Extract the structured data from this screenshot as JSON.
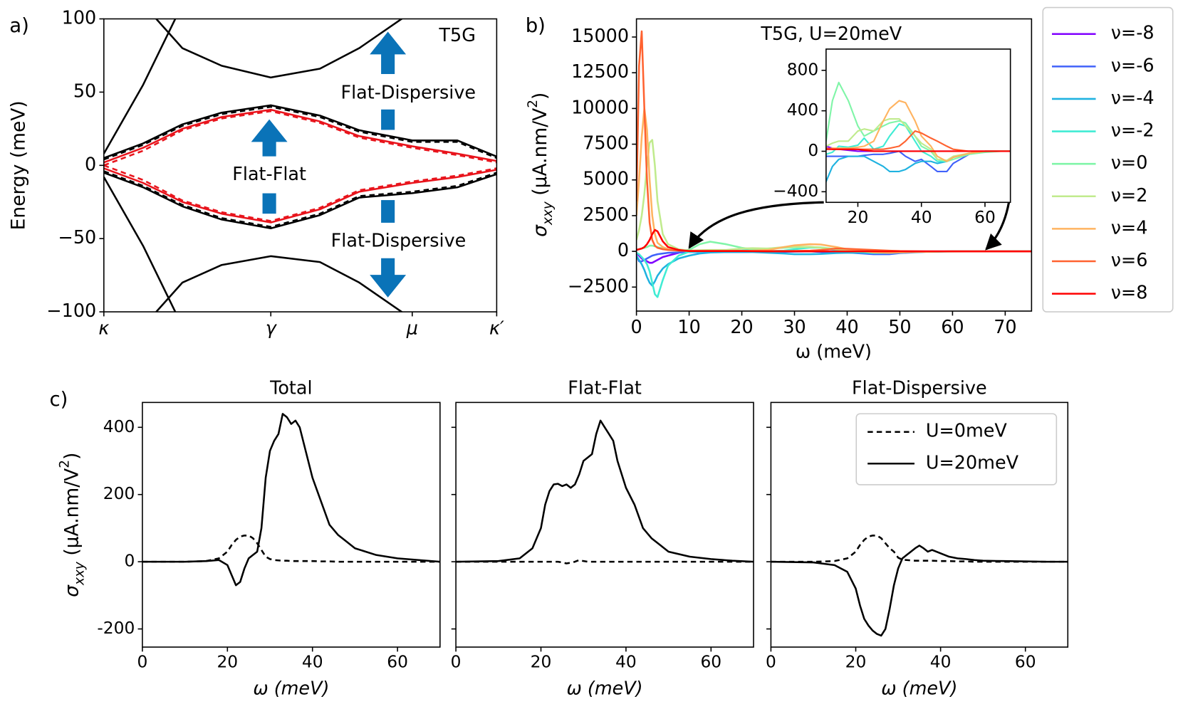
{
  "chart_data": [
    {
      "type": "line",
      "panel_label": "a)",
      "ylabel": "Energy (meV)",
      "x": [
        0,
        0.1,
        0.2,
        0.3,
        0.425,
        0.55,
        0.65,
        0.785,
        0.9,
        1
      ],
      "xlim": [
        0,
        1
      ],
      "xticks": [
        {
          "value": 0,
          "label": "κ"
        },
        {
          "value": 0.425,
          "label": "γ"
        },
        {
          "value": 0.785,
          "label": "μ"
        },
        {
          "value": 1,
          "label": "κ′"
        }
      ],
      "ylim": [
        -100,
        100
      ],
      "yticks": [
        {
          "value": -100,
          "label": "−100"
        },
        {
          "value": -50,
          "label": "−50"
        },
        0,
        50,
        100
      ],
      "annotations": [
        "T5G",
        "Flat-Dispersive",
        "Flat-Flat",
        "Flat-Dispersive"
      ],
      "series": [
        {
          "color": "#e8141c",
          "dash": false,
          "values": [
            2,
            12,
            25,
            33,
            38,
            30,
            20,
            13,
            8,
            3
          ]
        },
        {
          "color": "#e8141c",
          "dash": true,
          "values": [
            0,
            10,
            24,
            32,
            37,
            29,
            19,
            12,
            7,
            2
          ]
        },
        {
          "color": "#e8141c",
          "dash": false,
          "values": [
            -2,
            -12,
            -25,
            -33,
            -39,
            -30,
            -18,
            -12,
            -8,
            -3
          ]
        },
        {
          "color": "#e8141c",
          "dash": true,
          "values": [
            0,
            -10,
            -24,
            -32,
            -38,
            -29,
            -17,
            -11,
            -7,
            -2
          ]
        },
        {
          "color": "#000000",
          "dash": false,
          "values": [
            5,
            15,
            28,
            36,
            41,
            34,
            24,
            17,
            17,
            6
          ]
        },
        {
          "color": "#000000",
          "dash": true,
          "values": [
            4,
            14,
            27,
            35,
            40,
            33,
            23,
            16,
            16,
            5
          ]
        },
        {
          "color": "#000000",
          "dash": false,
          "values": [
            -5,
            -15,
            -28,
            -37,
            -43,
            -34,
            -22,
            -19,
            -15,
            -6
          ]
        },
        {
          "color": "#000000",
          "dash": true,
          "values": [
            -4,
            -14,
            -27,
            -36,
            -42,
            -33,
            -21,
            -18,
            -14,
            -5
          ]
        },
        {
          "color": "#000000",
          "dash": false,
          "values": [
            8,
            55,
            110,
            null,
            null,
            null,
            null,
            null,
            null,
            null
          ]
        },
        {
          "color": "#000000",
          "dash": false,
          "values": [
            null,
            110,
            80,
            68,
            60,
            66,
            80,
            105,
            null,
            null
          ]
        },
        {
          "color": "#000000",
          "dash": false,
          "values": [
            -8,
            -55,
            -110,
            null,
            null,
            null,
            null,
            null,
            null,
            null
          ]
        },
        {
          "color": "#000000",
          "dash": false,
          "values": [
            null,
            -110,
            -80,
            -68,
            -62,
            -66,
            -80,
            -105,
            null,
            null
          ]
        }
      ]
    },
    {
      "type": "line",
      "panel_label": "b)",
      "annotation": "T5G, U=20meV",
      "xlabel": "ω (meV)",
      "ylabel": [
        {
          "text": "σ"
        },
        {
          "text": "xxy",
          "script": "sub"
        },
        {
          "text": " (μA.nm/V"
        },
        {
          "text": "2",
          "script": "sup"
        },
        {
          "text": ")"
        }
      ],
      "legend": "outside right",
      "x": [
        0,
        0.5,
        1,
        1.5,
        2,
        2.5,
        3,
        3.5,
        4,
        5,
        6,
        8,
        10,
        12,
        14,
        17,
        20,
        22,
        25,
        28,
        30,
        33,
        35,
        38,
        40,
        43,
        45,
        48,
        50,
        55,
        60,
        65,
        70,
        75
      ],
      "xlim": [
        0,
        75
      ],
      "xticks": [
        0,
        10,
        20,
        30,
        40,
        50,
        60,
        70
      ],
      "ylim": [
        -4180,
        16270
      ],
      "yticks": [
        {
          "value": -2500,
          "label": "−2500"
        },
        0,
        2500,
        5000,
        7500,
        10000,
        12500,
        15000
      ],
      "inset": {
        "xlim": [
          10,
          68
        ],
        "xticks": [
          20,
          40,
          60
        ],
        "ylim": [
          -505,
          1010
        ],
        "yticks": [
          {
            "value": -400,
            "label": "−400"
          },
          0,
          400,
          800
        ]
      },
      "series": [
        {
          "name": "ν=-8",
          "color": "#8000ff",
          "values": [
            -100,
            -300,
            -500,
            -600,
            -700,
            -800,
            -800,
            -700,
            -600,
            -400,
            -300,
            -100,
            50,
            30,
            20,
            10,
            0,
            0,
            0,
            0,
            0,
            0,
            0,
            0,
            0,
            0,
            0,
            0,
            0,
            0,
            0,
            0,
            0,
            0
          ]
        },
        {
          "name": "ν=-6",
          "color": "#4062fa",
          "values": [
            -300,
            -700,
            -700,
            -600,
            -500,
            -400,
            -300,
            -250,
            -200,
            -150,
            -100,
            -80,
            -50,
            -50,
            -50,
            -50,
            -50,
            -40,
            -30,
            -30,
            -20,
            0,
            -50,
            -100,
            -80,
            -150,
            -200,
            -200,
            -120,
            -30,
            0,
            0,
            0,
            0
          ]
        },
        {
          "name": "ν=-4",
          "color": "#1fb2e0",
          "values": [
            -300,
            -600,
            -900,
            -1300,
            -1800,
            -2200,
            -2400,
            -2100,
            -1700,
            -1200,
            -900,
            -500,
            -300,
            -150,
            -80,
            -50,
            -50,
            -50,
            -100,
            -150,
            -200,
            -200,
            -180,
            -120,
            -100,
            -100,
            -120,
            -100,
            -60,
            -20,
            0,
            0,
            0,
            0
          ]
        },
        {
          "name": "ν=-2",
          "color": "#40ecd4",
          "values": [
            -100,
            -200,
            -400,
            -600,
            -900,
            -1400,
            -2200,
            -3000,
            -3200,
            -2000,
            -1000,
            -300,
            -30,
            -10,
            50,
            40,
            60,
            130,
            20,
            50,
            150,
            270,
            250,
            100,
            0,
            -50,
            -100,
            -100,
            -60,
            -20,
            0,
            0,
            0,
            0
          ]
        },
        {
          "name": "ν=0",
          "color": "#80f5a8",
          "values": [
            100,
            150,
            200,
            250,
            300,
            400,
            400,
            350,
            300,
            200,
            150,
            80,
            100,
            500,
            680,
            500,
            250,
            150,
            200,
            250,
            280,
            300,
            280,
            150,
            50,
            0,
            -80,
            -100,
            -80,
            -30,
            -10,
            0,
            0,
            0
          ]
        },
        {
          "name": "ν=2",
          "color": "#c0eb8d",
          "values": [
            800,
            1500,
            2500,
            4000,
            6000,
            7600,
            7800,
            6000,
            3500,
            1200,
            500,
            150,
            50,
            80,
            100,
            100,
            200,
            220,
            200,
            300,
            320,
            320,
            250,
            150,
            80,
            20,
            -80,
            -90,
            -50,
            -20,
            0,
            0,
            0,
            0
          ]
        },
        {
          "name": "ν=4",
          "color": "#ffb360",
          "values": [
            2500,
            5000,
            8000,
            10000,
            8500,
            5000,
            2500,
            1200,
            600,
            300,
            150,
            60,
            20,
            30,
            30,
            30,
            40,
            50,
            100,
            300,
            420,
            500,
            480,
            300,
            150,
            50,
            -50,
            -100,
            -60,
            -20,
            0,
            0,
            0,
            0
          ]
        },
        {
          "name": "ν=6",
          "color": "#ff6230",
          "values": [
            3500,
            13000,
            15400,
            10000,
            5000,
            2000,
            800,
            400,
            250,
            150,
            100,
            50,
            30,
            20,
            20,
            20,
            20,
            20,
            20,
            20,
            30,
            50,
            100,
            200,
            180,
            130,
            100,
            50,
            20,
            0,
            0,
            0,
            0,
            0
          ]
        },
        {
          "name": "ν=8",
          "color": "#ff0000",
          "values": [
            100,
            150,
            200,
            300,
            500,
            800,
            1200,
            1500,
            1400,
            700,
            300,
            100,
            20,
            20,
            20,
            20,
            20,
            10,
            0,
            0,
            0,
            0,
            0,
            0,
            0,
            0,
            0,
            0,
            0,
            0,
            0,
            0,
            0,
            0
          ]
        }
      ]
    },
    {
      "type": "line",
      "panel_label": "c)",
      "title": "Total",
      "xlabel": "ω (meV)",
      "ylabel": [
        {
          "text": "σ"
        },
        {
          "text": "xxy",
          "script": "sub"
        },
        {
          "text": " (μA.nm/V"
        },
        {
          "text": "2",
          "script": "sup"
        },
        {
          "text": ")"
        }
      ],
      "x": [
        0,
        10,
        15,
        18,
        20,
        21,
        22,
        23,
        24,
        25,
        26,
        27,
        28,
        29,
        30,
        31,
        32,
        33,
        34,
        35,
        36,
        37,
        38,
        40,
        42,
        44,
        46,
        48,
        50,
        55,
        60,
        65,
        70
      ],
      "xlim": [
        0,
        70
      ],
      "xticks": [
        0,
        20,
        40,
        60
      ],
      "ylim": [
        -254,
        474
      ],
      "yticks": [
        -200,
        0,
        200,
        400
      ],
      "show_yticklabels": true,
      "series": [
        {
          "color": "#000000",
          "dash": true,
          "values": [
            0,
            0,
            2,
            10,
            30,
            50,
            65,
            75,
            78,
            78,
            70,
            55,
            35,
            15,
            8,
            5,
            4,
            3,
            3,
            2,
            2,
            2,
            2,
            2,
            1,
            1,
            0,
            0,
            0,
            0,
            0,
            0,
            0
          ]
        },
        {
          "color": "#000000",
          "dash": false,
          "values": [
            0,
            0,
            2,
            5,
            -10,
            -40,
            -70,
            -60,
            -20,
            10,
            20,
            30,
            100,
            250,
            330,
            360,
            380,
            440,
            430,
            410,
            420,
            400,
            350,
            250,
            180,
            110,
            80,
            60,
            40,
            20,
            10,
            5,
            0
          ]
        }
      ]
    },
    {
      "type": "line",
      "title": "Flat-Flat",
      "xlabel": "ω (meV)",
      "x": [
        0,
        10,
        15,
        18,
        20,
        21,
        22,
        23,
        24,
        25,
        26,
        27,
        28,
        29,
        30,
        31,
        32,
        33,
        34,
        35,
        36,
        37,
        38,
        40,
        42,
        44,
        46,
        48,
        50,
        55,
        60,
        65,
        70
      ],
      "xlim": [
        0,
        70
      ],
      "xticks": [
        0,
        20,
        40,
        60
      ],
      "ylim": [
        -254,
        474
      ],
      "yticks": [
        -200,
        0,
        200,
        400
      ],
      "show_yticklabels": false,
      "series": [
        {
          "color": "#000000",
          "dash": true,
          "values": [
            0,
            0,
            0,
            0,
            0,
            0,
            0,
            0,
            0,
            -2,
            -5,
            -3,
            0,
            5,
            2,
            0,
            0,
            0,
            0,
            0,
            0,
            0,
            0,
            0,
            0,
            0,
            0,
            0,
            0,
            0,
            0,
            0,
            0
          ]
        },
        {
          "color": "#000000",
          "dash": false,
          "values": [
            0,
            2,
            10,
            40,
            100,
            170,
            210,
            230,
            232,
            225,
            230,
            220,
            230,
            260,
            300,
            310,
            320,
            380,
            420,
            400,
            380,
            360,
            300,
            220,
            170,
            100,
            70,
            50,
            30,
            15,
            8,
            3,
            0
          ]
        }
      ]
    },
    {
      "type": "line",
      "title": "Flat-Dispersive",
      "xlabel": "ω (meV)",
      "legend": "upper right",
      "x": [
        0,
        10,
        15,
        18,
        20,
        21,
        22,
        23,
        24,
        25,
        26,
        27,
        28,
        29,
        30,
        31,
        32,
        33,
        34,
        35,
        36,
        37,
        38,
        40,
        42,
        44,
        46,
        48,
        50,
        55,
        60,
        65,
        70
      ],
      "xlim": [
        0,
        70
      ],
      "xticks": [
        0,
        20,
        40,
        60
      ],
      "ylim": [
        -254,
        474
      ],
      "yticks": [
        -200,
        0,
        200,
        400
      ],
      "show_yticklabels": false,
      "series": [
        {
          "name": "U=0meV",
          "color": "#000000",
          "dash": true,
          "values": [
            0,
            0,
            2,
            10,
            30,
            50,
            65,
            75,
            78,
            78,
            70,
            55,
            40,
            30,
            12,
            6,
            5,
            4,
            3,
            3,
            3,
            3,
            3,
            2,
            2,
            1,
            1,
            0,
            0,
            0,
            0,
            0,
            0
          ]
        },
        {
          "name": "U=20meV",
          "color": "#000000",
          "dash": false,
          "values": [
            0,
            -2,
            -10,
            -30,
            -80,
            -130,
            -170,
            -190,
            -205,
            -215,
            -220,
            -200,
            -140,
            -70,
            -20,
            10,
            20,
            30,
            40,
            48,
            40,
            30,
            35,
            25,
            15,
            10,
            8,
            5,
            3,
            2,
            1,
            0,
            0
          ]
        }
      ]
    }
  ]
}
